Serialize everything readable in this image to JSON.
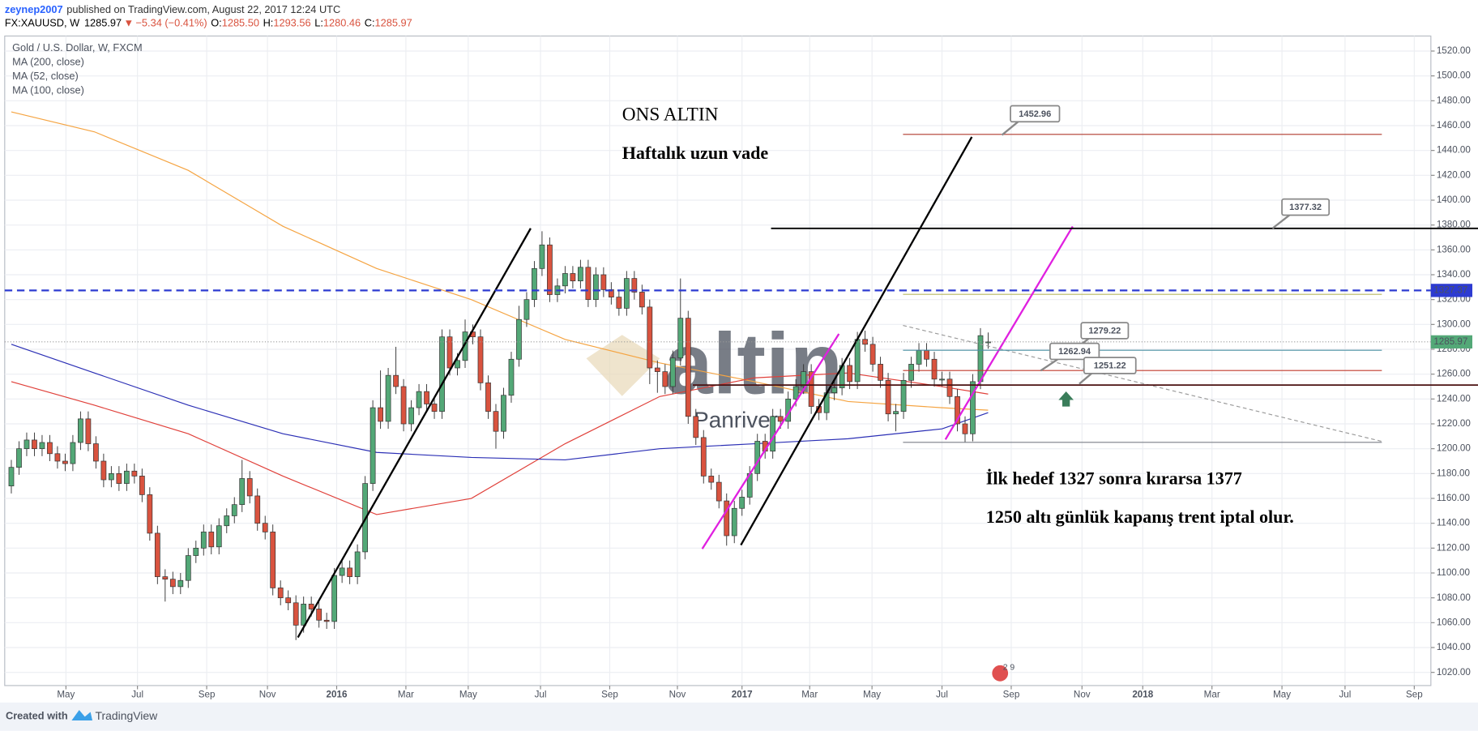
{
  "header": {
    "user": "zeynep2007",
    "published": "published on TradingView.com, August 22, 2017 12:24 UTC",
    "symbol": "FX:XAUUSD, W",
    "last": "1285.97",
    "direction": "▼",
    "change": "−5.34 (−0.41%)",
    "ohlc": [
      {
        "label": "O:",
        "value": "1285.50"
      },
      {
        "label": "H:",
        "value": "1293.56"
      },
      {
        "label": "L:",
        "value": "1280.46"
      },
      {
        "label": "C:",
        "value": "1285.97"
      }
    ]
  },
  "footer": {
    "created": "Created with",
    "brand": "TradingView"
  },
  "chart_data": {
    "type": "candlestick",
    "symbol_title": "Gold / U.S. Dollar, W, FXCM",
    "up_color": "#53a877",
    "down_color": "#d9533f",
    "grid": true,
    "xlim": [
      -0.86,
      184.56
    ],
    "ylim": [
      1009.4,
      1532.1
    ],
    "xticks": [
      {
        "value": 7.1,
        "label": "May"
      },
      {
        "value": 16.4,
        "label": "Jul"
      },
      {
        "value": 25.4,
        "label": "Sep"
      },
      {
        "value": 33.3,
        "label": "Nov"
      },
      {
        "value": 42.3,
        "label": "2016"
      },
      {
        "value": 51.3,
        "label": "Mar"
      },
      {
        "value": 59.4,
        "label": "May"
      },
      {
        "value": 68.8,
        "label": "Jul"
      },
      {
        "value": 77.8,
        "label": "Sep"
      },
      {
        "value": 86.6,
        "label": "Nov"
      },
      {
        "value": 95.0,
        "label": "2017"
      },
      {
        "value": 103.8,
        "label": "Mar"
      },
      {
        "value": 111.9,
        "label": "May"
      },
      {
        "value": 121.0,
        "label": "Jul"
      },
      {
        "value": 130.0,
        "label": "Sep"
      },
      {
        "value": 139.2,
        "label": "Nov"
      },
      {
        "value": 147.1,
        "label": "2018"
      },
      {
        "value": 156.1,
        "label": "Mar"
      },
      {
        "value": 165.2,
        "label": "May"
      },
      {
        "value": 173.4,
        "label": "Jul"
      },
      {
        "value": 182.4,
        "label": "Sep"
      }
    ],
    "yticks": [
      {
        "value": 1020,
        "label": "1020.00"
      },
      {
        "value": 1040,
        "label": "1040.00"
      },
      {
        "value": 1060,
        "label": "1060.00"
      },
      {
        "value": 1080,
        "label": "1080.00"
      },
      {
        "value": 1100,
        "label": "1100.00"
      },
      {
        "value": 1120,
        "label": "1120.00"
      },
      {
        "value": 1140,
        "label": "1140.00"
      },
      {
        "value": 1160,
        "label": "1160.00"
      },
      {
        "value": 1180,
        "label": "1180.00"
      },
      {
        "value": 1200,
        "label": "1200.00"
      },
      {
        "value": 1220,
        "label": "1220.00"
      },
      {
        "value": 1240,
        "label": "1240.00"
      },
      {
        "value": 1260,
        "label": "1260.00"
      },
      {
        "value": 1280,
        "label": "1280.00"
      },
      {
        "value": 1300,
        "label": "1300.00"
      },
      {
        "value": 1320,
        "label": "1320.00"
      },
      {
        "value": 1340,
        "label": "1340.00"
      },
      {
        "value": 1360,
        "label": "1360.00"
      },
      {
        "value": 1380,
        "label": "1380.00"
      },
      {
        "value": 1400,
        "label": "1400.00"
      },
      {
        "value": 1420,
        "label": "1420.00"
      },
      {
        "value": 1440,
        "label": "1440.00"
      },
      {
        "value": 1460,
        "label": "1460.00"
      },
      {
        "value": 1480,
        "label": "1480.00"
      },
      {
        "value": 1500,
        "label": "1500.00"
      },
      {
        "value": 1520,
        "label": "1520.00"
      }
    ],
    "candles": [
      [
        1170,
        1191,
        1164,
        1185
      ],
      [
        1185,
        1206,
        1179,
        1200
      ],
      [
        1200,
        1213,
        1194,
        1207
      ],
      [
        1207,
        1213,
        1194,
        1200
      ],
      [
        1200,
        1211,
        1194,
        1205
      ],
      [
        1205,
        1211,
        1190,
        1196
      ],
      [
        1196,
        1202,
        1184,
        1190
      ],
      [
        1190,
        1196,
        1182,
        1188
      ],
      [
        1188,
        1211,
        1182,
        1205
      ],
      [
        1205,
        1230,
        1199,
        1224
      ],
      [
        1224,
        1230,
        1198,
        1204
      ],
      [
        1204,
        1210,
        1184,
        1190
      ],
      [
        1190,
        1196,
        1169,
        1175
      ],
      [
        1175,
        1186,
        1169,
        1180
      ],
      [
        1180,
        1186,
        1166,
        1172
      ],
      [
        1172,
        1188,
        1166,
        1182
      ],
      [
        1182,
        1188,
        1172,
        1178
      ],
      [
        1178,
        1184,
        1157,
        1163
      ],
      [
        1163,
        1169,
        1126,
        1132
      ],
      [
        1132,
        1138,
        1091,
        1097
      ],
      [
        1097,
        1103,
        1077,
        1095
      ],
      [
        1095,
        1101,
        1083,
        1089
      ],
      [
        1089,
        1100,
        1083,
        1094
      ],
      [
        1094,
        1120,
        1088,
        1114
      ],
      [
        1114,
        1126,
        1108,
        1120
      ],
      [
        1120,
        1139,
        1114,
        1133
      ],
      [
        1133,
        1139,
        1115,
        1121
      ],
      [
        1121,
        1144,
        1115,
        1138
      ],
      [
        1138,
        1152,
        1132,
        1146
      ],
      [
        1146,
        1161,
        1140,
        1155
      ],
      [
        1155,
        1191,
        1149,
        1176
      ],
      [
        1176,
        1182,
        1156,
        1162
      ],
      [
        1162,
        1168,
        1134,
        1140
      ],
      [
        1140,
        1146,
        1127,
        1133
      ],
      [
        1133,
        1139,
        1082,
        1088
      ],
      [
        1088,
        1094,
        1074,
        1080
      ],
      [
        1080,
        1086,
        1070,
        1076
      ],
      [
        1076,
        1082,
        1046,
        1058
      ],
      [
        1058,
        1081,
        1052,
        1075
      ],
      [
        1075,
        1081,
        1065,
        1071
      ],
      [
        1071,
        1077,
        1056,
        1062
      ],
      [
        1062,
        1068,
        1055,
        1061
      ],
      [
        1061,
        1104,
        1055,
        1098
      ],
      [
        1098,
        1110,
        1092,
        1104
      ],
      [
        1104,
        1110,
        1091,
        1097
      ],
      [
        1097,
        1123,
        1091,
        1117
      ],
      [
        1117,
        1178,
        1111,
        1172
      ],
      [
        1172,
        1239,
        1166,
        1233
      ],
      [
        1233,
        1263,
        1216,
        1222
      ],
      [
        1222,
        1265,
        1216,
        1259
      ],
      [
        1259,
        1282,
        1244,
        1250
      ],
      [
        1250,
        1256,
        1214,
        1220
      ],
      [
        1220,
        1239,
        1214,
        1233
      ],
      [
        1233,
        1252,
        1227,
        1246
      ],
      [
        1246,
        1252,
        1230,
        1236
      ],
      [
        1236,
        1242,
        1224,
        1230
      ],
      [
        1230,
        1296,
        1224,
        1290
      ],
      [
        1290,
        1296,
        1259,
        1265
      ],
      [
        1265,
        1277,
        1259,
        1271
      ],
      [
        1271,
        1304,
        1265,
        1294
      ],
      [
        1294,
        1300,
        1284,
        1290
      ],
      [
        1290,
        1296,
        1247,
        1253
      ],
      [
        1253,
        1259,
        1224,
        1230
      ],
      [
        1230,
        1236,
        1200,
        1214
      ],
      [
        1214,
        1249,
        1208,
        1243
      ],
      [
        1243,
        1278,
        1237,
        1272
      ],
      [
        1272,
        1315,
        1266,
        1304
      ],
      [
        1304,
        1326,
        1298,
        1320
      ],
      [
        1320,
        1351,
        1314,
        1345
      ],
      [
        1345,
        1375,
        1339,
        1364
      ],
      [
        1364,
        1370,
        1318,
        1324
      ],
      [
        1324,
        1337,
        1318,
        1331
      ],
      [
        1331,
        1347,
        1325,
        1341
      ],
      [
        1341,
        1347,
        1329,
        1335
      ],
      [
        1335,
        1352,
        1329,
        1346
      ],
      [
        1346,
        1352,
        1314,
        1320
      ],
      [
        1320,
        1346,
        1314,
        1340
      ],
      [
        1340,
        1346,
        1322,
        1328
      ],
      [
        1328,
        1334,
        1316,
        1322
      ],
      [
        1322,
        1328,
        1307,
        1313
      ],
      [
        1313,
        1343,
        1307,
        1337
      ],
      [
        1337,
        1343,
        1320,
        1326
      ],
      [
        1326,
        1332,
        1308,
        1314
      ],
      [
        1314,
        1320,
        1252,
        1265
      ],
      [
        1265,
        1271,
        1245,
        1262
      ],
      [
        1262,
        1268,
        1244,
        1250
      ],
      [
        1250,
        1279,
        1244,
        1273
      ],
      [
        1273,
        1337,
        1267,
        1305
      ],
      [
        1305,
        1311,
        1220,
        1226
      ],
      [
        1226,
        1232,
        1203,
        1209
      ],
      [
        1209,
        1215,
        1172,
        1178
      ],
      [
        1178,
        1184,
        1167,
        1173
      ],
      [
        1173,
        1179,
        1152,
        1158
      ],
      [
        1158,
        1164,
        1122,
        1130
      ],
      [
        1130,
        1158,
        1124,
        1152
      ],
      [
        1152,
        1167,
        1146,
        1161
      ],
      [
        1161,
        1186,
        1155,
        1180
      ],
      [
        1180,
        1212,
        1174,
        1206
      ],
      [
        1206,
        1212,
        1192,
        1198
      ],
      [
        1198,
        1232,
        1192,
        1226
      ],
      [
        1226,
        1232,
        1216,
        1222
      ],
      [
        1222,
        1246,
        1216,
        1240
      ],
      [
        1240,
        1256,
        1234,
        1250
      ],
      [
        1250,
        1268,
        1244,
        1262
      ],
      [
        1262,
        1268,
        1228,
        1234
      ],
      [
        1234,
        1240,
        1223,
        1229
      ],
      [
        1229,
        1251,
        1223,
        1245
      ],
      [
        1245,
        1255,
        1239,
        1249
      ],
      [
        1249,
        1273,
        1243,
        1267
      ],
      [
        1267,
        1273,
        1248,
        1254
      ],
      [
        1254,
        1294,
        1248,
        1288
      ],
      [
        1288,
        1295,
        1278,
        1284
      ],
      [
        1284,
        1290,
        1262,
        1268
      ],
      [
        1268,
        1274,
        1249,
        1255
      ],
      [
        1255,
        1261,
        1222,
        1228
      ],
      [
        1228,
        1236,
        1214,
        1230
      ],
      [
        1230,
        1261,
        1224,
        1255
      ],
      [
        1255,
        1274,
        1249,
        1268
      ],
      [
        1268,
        1285,
        1262,
        1279
      ],
      [
        1279,
        1285,
        1266,
        1272
      ],
      [
        1272,
        1278,
        1250,
        1256
      ],
      [
        1256,
        1262,
        1250,
        1256
      ],
      [
        1256,
        1262,
        1236,
        1242
      ],
      [
        1242,
        1248,
        1214,
        1220
      ],
      [
        1220,
        1226,
        1205,
        1212
      ],
      [
        1212,
        1260,
        1206,
        1254
      ],
      [
        1254,
        1297,
        1248,
        1291
      ],
      [
        1285.5,
        1293.56,
        1280.46,
        1285.97
      ]
    ],
    "series": [
      {
        "name": "MA (200, close)",
        "color": "#f5a442",
        "x": [
          0,
          10.8,
          23,
          35.3,
          47.5,
          59.8,
          72,
          84.3,
          96.6,
          108.8,
          121,
          127
        ],
        "values": [
          1471,
          1455,
          1424,
          1379,
          1345,
          1320,
          1288,
          1269,
          1254,
          1238,
          1233,
          1231
        ]
      },
      {
        "name": "MA (52, close)",
        "color": "#e0403a",
        "x": [
          0,
          10.8,
          23,
          35.3,
          47.5,
          59.8,
          72,
          84.3,
          96.6,
          108.8,
          121,
          127
        ],
        "values": [
          1254,
          1235,
          1212,
          1178,
          1147,
          1160,
          1204,
          1242,
          1257,
          1261,
          1250,
          1244
        ]
      },
      {
        "name": "MA (100, close)",
        "color": "#2b2fb5",
        "x": [
          0,
          10.8,
          23,
          35.3,
          47.5,
          59.8,
          72,
          84.3,
          96.6,
          108.8,
          121,
          127
        ],
        "values": [
          1284,
          1261,
          1235,
          1212,
          1197,
          1193,
          1191,
          1200,
          1204,
          1208,
          1216,
          1229
        ]
      }
    ],
    "levels": [
      {
        "value": 1452.96,
        "color": "#b03a2e"
      },
      {
        "value": 1377.32,
        "color": "#000000"
      },
      {
        "value": 1279.22,
        "color": "#4a90a4"
      },
      {
        "value": 1262.94,
        "color": "#c0392b"
      },
      {
        "value": 1251.22,
        "color": "#4a1010"
      }
    ],
    "axis_labels": [
      {
        "value": 1327.37,
        "color": "#2d3bd1"
      },
      {
        "value": 1285.97,
        "color": "#53a877"
      }
    ],
    "annotations": [
      "ONS ALTIN",
      "Haftalık uzun vade",
      "İlk hedef 1327 sonra kırarsa 1377",
      "1250 altı günlük kapanış trent iptal olur."
    ],
    "watermark": [
      "altin",
      "Panriver"
    ],
    "event_badge": "2 9"
  }
}
